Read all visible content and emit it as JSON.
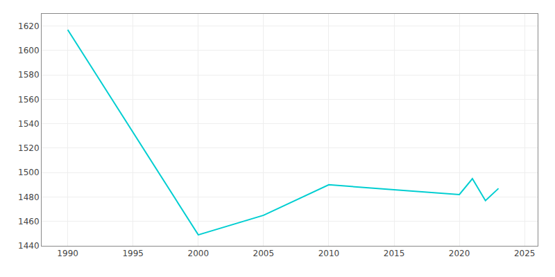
{
  "chart_data": {
    "type": "line",
    "x": [
      1990,
      2000,
      2005,
      2010,
      2015,
      2020,
      2021,
      2022,
      2023
    ],
    "values": [
      1617,
      1449,
      1465,
      1490,
      1486,
      1482,
      1495,
      1477,
      1487
    ],
    "color": "#00CED1",
    "xlim": [
      1988,
      2026
    ],
    "ylim": [
      1440,
      1630
    ],
    "xticks": [
      1990,
      1995,
      2000,
      2005,
      2010,
      2015,
      2020,
      2025
    ],
    "yticks": [
      1440,
      1460,
      1480,
      1500,
      1520,
      1540,
      1560,
      1580,
      1600,
      1620
    ],
    "grid": true
  }
}
